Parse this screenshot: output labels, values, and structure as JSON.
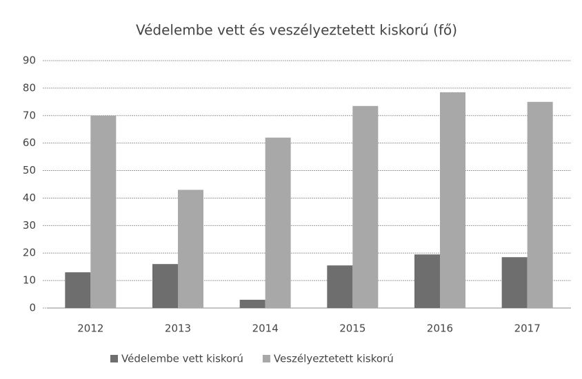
{
  "chart_data": {
    "type": "bar",
    "title": "Védelembe vett és veszélyeztetett kiskorú (fő)",
    "categories": [
      "2012",
      "2013",
      "2014",
      "2015",
      "2016",
      "2017"
    ],
    "series": [
      {
        "name": "Védelembe vett kiskorú",
        "color": "#6e6e6e",
        "values": [
          13,
          16,
          3,
          15.5,
          19.5,
          18.5
        ]
      },
      {
        "name": "Veszélyeztetett kiskorú",
        "color": "#a8a8a8",
        "values": [
          70,
          43,
          62,
          73.5,
          78.5,
          75
        ]
      }
    ],
    "ylim": [
      0,
      90
    ],
    "yticks": [
      0,
      10,
      20,
      30,
      40,
      50,
      60,
      70,
      80,
      90
    ],
    "grid": true,
    "legend": "bottom"
  }
}
